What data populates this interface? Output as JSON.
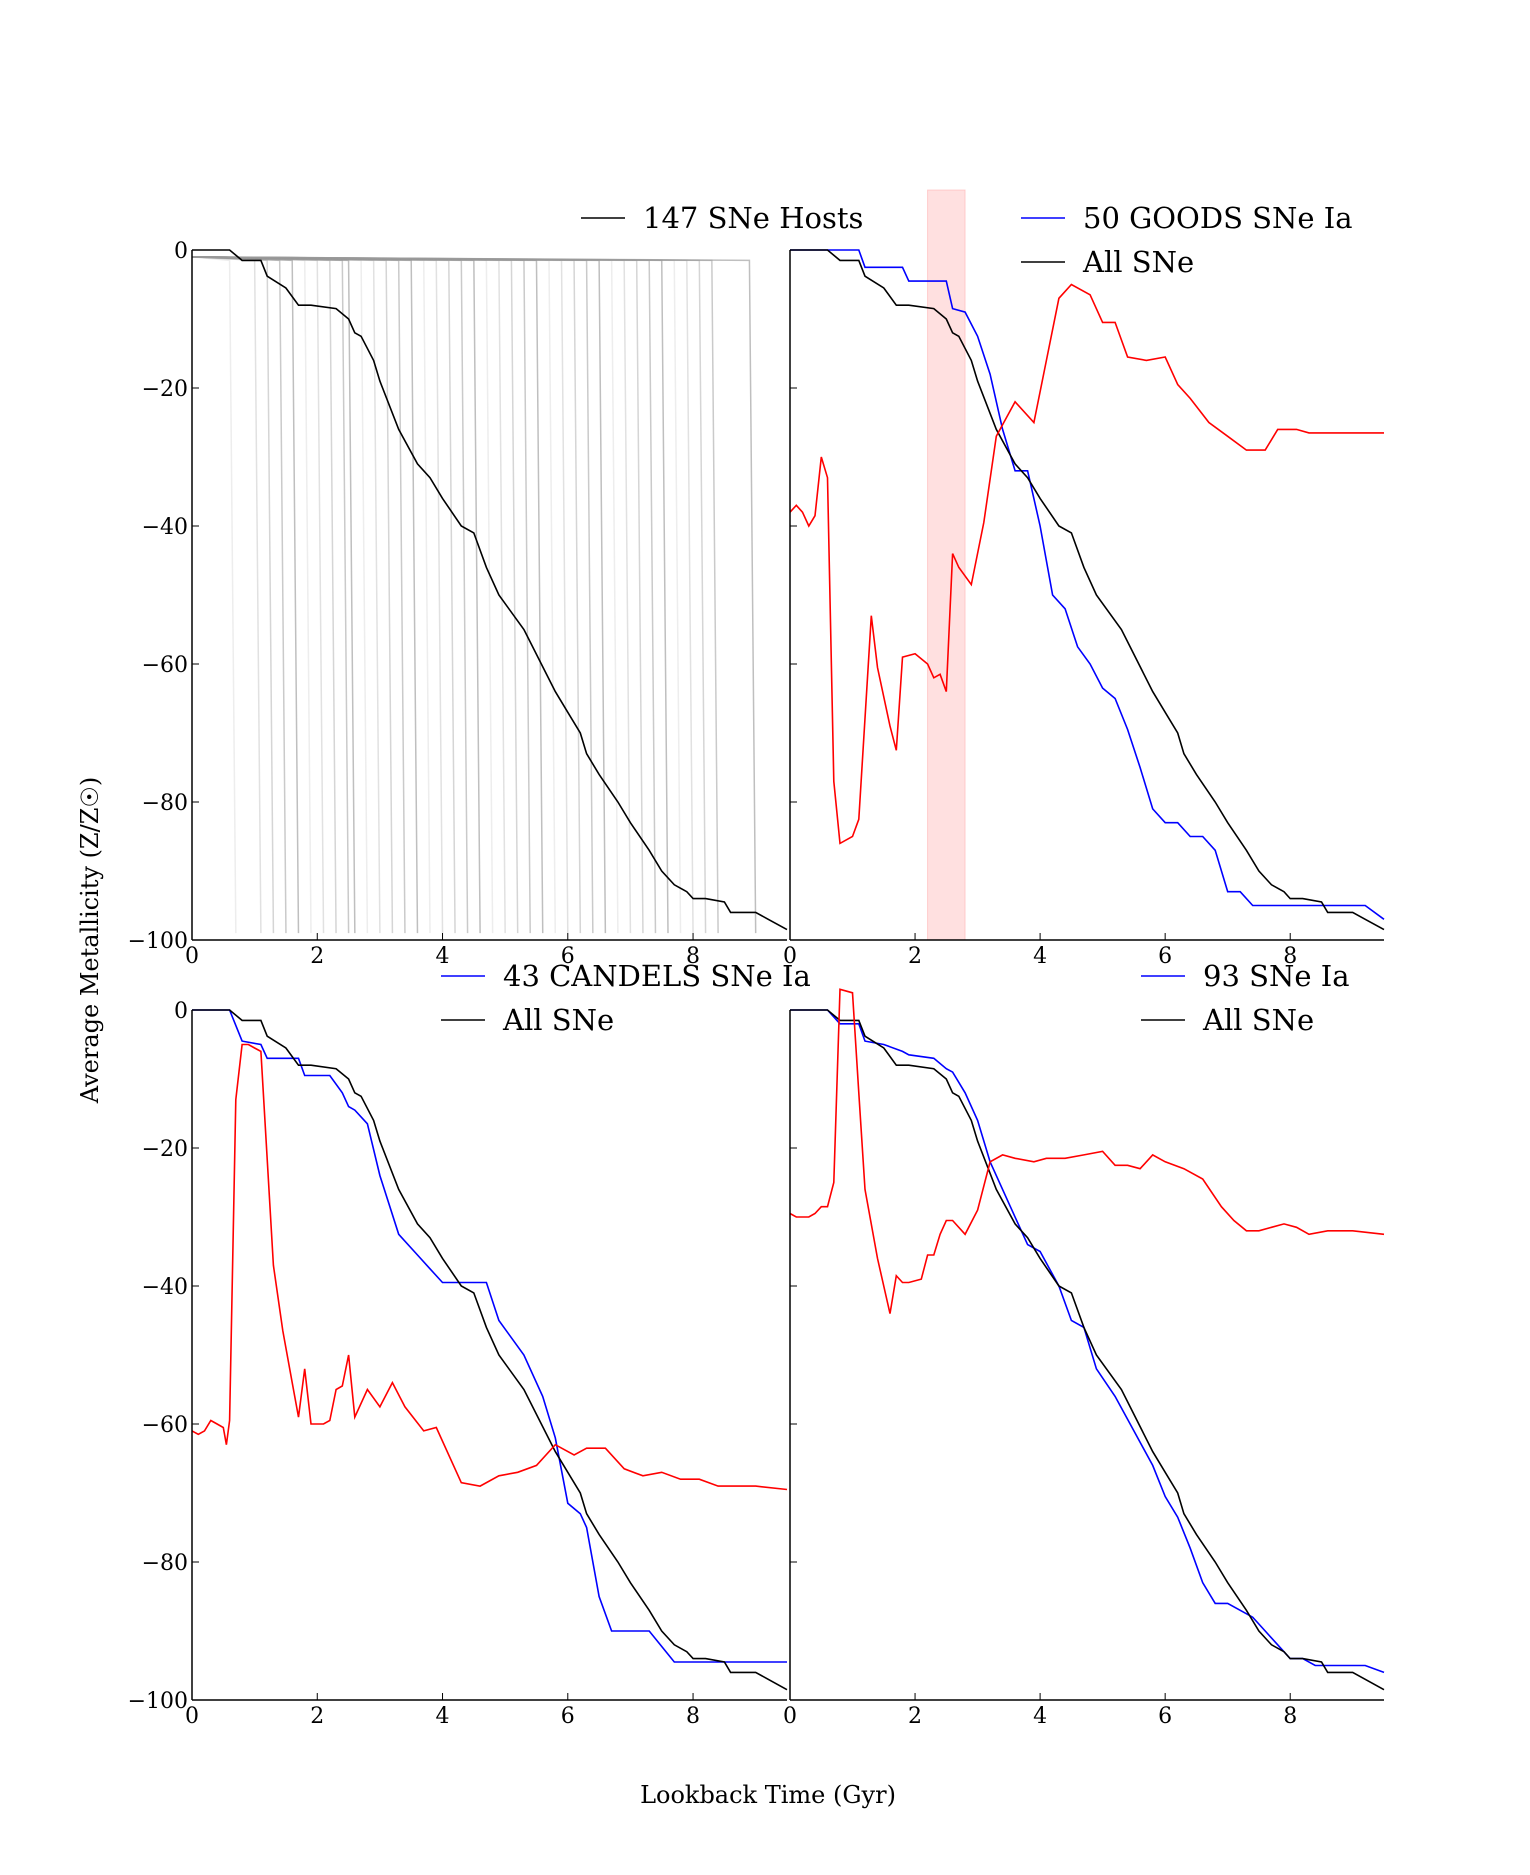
{
  "figure": {
    "xlabel": "Lookback Time (Gyr)",
    "ylabel": "Average Metallicity (Z/Z☉)"
  },
  "chart_data": [
    {
      "type": "line",
      "id": "hosts",
      "xlim": [
        0,
        9.5
      ],
      "ylim": [
        -100,
        0
      ],
      "xticks": [
        0,
        2,
        4,
        6,
        8
      ],
      "yticks": [
        0,
        -20,
        -40,
        -60,
        -80,
        -100
      ],
      "legend": [
        {
          "label": "147 SNe Hosts",
          "color": "#000000"
        }
      ],
      "background_tracks": {
        "color": "#999999",
        "floor": -99,
        "drop_times": [
          0.7,
          1.1,
          1.3,
          1.5,
          1.7,
          1.9,
          2.1,
          2.3,
          2.5,
          2.6,
          2.8,
          3.0,
          3.2,
          3.4,
          3.6,
          3.8,
          4.0,
          4.2,
          4.4,
          4.6,
          4.8,
          5.0,
          5.2,
          5.4,
          5.6,
          5.8,
          6.0,
          6.2,
          6.4,
          6.6,
          6.8,
          7.0,
          7.2,
          7.4,
          7.6,
          7.8,
          8.0,
          8.2,
          8.4,
          9.0
        ]
      },
      "series": [
        {
          "name": "147 SNe Hosts",
          "color": "#000000",
          "x": [
            0,
            0.1,
            0.6,
            0.8,
            1.1,
            1.2,
            1.5,
            1.7,
            1.9,
            2.3,
            2.5,
            2.6,
            2.7,
            2.9,
            3.0,
            3.3,
            3.6,
            3.8,
            4.0,
            4.3,
            4.5,
            4.7,
            4.9,
            5.3,
            5.8,
            6.0,
            6.2,
            6.3,
            6.5,
            6.8,
            7.0,
            7.3,
            7.5,
            7.7,
            7.9,
            8.0,
            8.2,
            8.5,
            8.6,
            9.0,
            9.2,
            9.5
          ],
          "y": [
            0,
            0,
            0,
            -1.5,
            -1.5,
            -3.8,
            -5.5,
            -8,
            -8,
            -8.5,
            -10,
            -12,
            -12.5,
            -16,
            -19,
            -26,
            -31,
            -33,
            -36,
            -40,
            -41,
            -46,
            -50,
            -55,
            -64,
            -67,
            -70,
            -73,
            -76,
            -80,
            -83,
            -87,
            -90,
            -92,
            -93,
            -94,
            -94,
            -94.5,
            -96,
            -96,
            -97,
            -98.5
          ]
        }
      ]
    },
    {
      "type": "line",
      "id": "goods",
      "xlim": [
        0,
        9.5
      ],
      "ylim": [
        -100,
        0
      ],
      "xticks": [
        0,
        2,
        4,
        6,
        8
      ],
      "yticks": [
        0,
        -20,
        -40,
        -60,
        -80,
        -100
      ],
      "highlight_band": {
        "x0": 2.2,
        "x1": 2.8,
        "color": "#ff9999"
      },
      "legend": [
        {
          "label": "50 GOODS SNe Ia",
          "color": "#0000ff"
        },
        {
          "label": "All SNe",
          "color": "#000000"
        }
      ],
      "series": [
        {
          "name": "50 GOODS SNe Ia",
          "color": "#0000ff",
          "x": [
            0,
            0.1,
            1.1,
            1.2,
            1.8,
            1.9,
            2.5,
            2.6,
            2.8,
            3.0,
            3.2,
            3.4,
            3.6,
            3.8,
            4.0,
            4.2,
            4.4,
            4.6,
            4.8,
            5.0,
            5.2,
            5.4,
            5.6,
            5.8,
            6.0,
            6.2,
            6.4,
            6.6,
            6.8,
            7.0,
            7.2,
            7.4,
            7.6,
            7.8,
            8.0,
            8.2,
            8.4,
            8.6,
            8.8,
            9.0,
            9.2,
            9.5
          ],
          "y": [
            0,
            0,
            0,
            -2.5,
            -2.5,
            -4.5,
            -4.5,
            -8.5,
            -9,
            -12.5,
            -18,
            -26,
            -32,
            -32,
            -40,
            -50,
            -52,
            -57.5,
            -60,
            -63.5,
            -65,
            -69.5,
            -75,
            -81,
            -83,
            -83,
            -85,
            -85,
            -87,
            -93,
            -93,
            -95,
            -95,
            -95,
            -95,
            -95,
            -95,
            -95,
            -95,
            -95,
            -95,
            -97
          ]
        },
        {
          "name": "All SNe",
          "color": "#000000",
          "x": [
            0,
            0.1,
            0.6,
            0.8,
            1.1,
            1.2,
            1.5,
            1.7,
            1.9,
            2.3,
            2.5,
            2.6,
            2.7,
            2.9,
            3.0,
            3.3,
            3.6,
            3.8,
            4.0,
            4.3,
            4.5,
            4.7,
            4.9,
            5.3,
            5.8,
            6.0,
            6.2,
            6.3,
            6.5,
            6.8,
            7.0,
            7.3,
            7.5,
            7.7,
            7.9,
            8.0,
            8.2,
            8.5,
            8.6,
            9.0,
            9.2,
            9.5
          ],
          "y": [
            0,
            0,
            0,
            -1.5,
            -1.5,
            -3.8,
            -5.5,
            -8,
            -8,
            -8.5,
            -10,
            -12,
            -12.5,
            -16,
            -19,
            -26,
            -31,
            -33,
            -36,
            -40,
            -41,
            -46,
            -50,
            -55,
            -64,
            -67,
            -70,
            -73,
            -76,
            -80,
            -83,
            -87,
            -90,
            -92,
            -93,
            -94,
            -94,
            -94.5,
            -96,
            -96,
            -97,
            -98.5
          ]
        },
        {
          "name": "",
          "color": "#ff0000",
          "x": [
            0,
            0.1,
            0.2,
            0.3,
            0.4,
            0.5,
            0.6,
            0.7,
            0.8,
            1.0,
            1.1,
            1.3,
            1.4,
            1.6,
            1.7,
            1.8,
            2.0,
            2.2,
            2.3,
            2.4,
            2.5,
            2.6,
            2.7,
            2.9,
            3.1,
            3.3,
            3.6,
            3.9,
            4.1,
            4.3,
            4.5,
            4.8,
            5.0,
            5.2,
            5.4,
            5.7,
            6.0,
            6.2,
            6.4,
            6.7,
            7.0,
            7.3,
            7.6,
            7.8,
            8.1,
            8.3,
            8.6,
            9.0,
            9.5
          ],
          "y": [
            -38,
            -37,
            -38,
            -40,
            -38.5,
            -30,
            -33,
            -77,
            -86,
            -85,
            -82.5,
            -53,
            -60.5,
            -69,
            -72.5,
            -59,
            -58.5,
            -60,
            -62,
            -61.5,
            -64,
            -44,
            -46,
            -48.5,
            -39.5,
            -27,
            -22,
            -25,
            -16,
            -7,
            -5,
            -6.5,
            -10.5,
            -10.5,
            -15.5,
            -16,
            -15.5,
            -19.5,
            -21.5,
            -25,
            -27,
            -29,
            -29,
            -26,
            -26,
            -26.5,
            -26.5,
            -26.5,
            -26.5
          ]
        }
      ]
    },
    {
      "type": "line",
      "id": "candels",
      "xlim": [
        0,
        9.5
      ],
      "ylim": [
        -100,
        0
      ],
      "xticks": [
        0,
        2,
        4,
        6,
        8
      ],
      "yticks": [
        0,
        -20,
        -40,
        -60,
        -80,
        -100
      ],
      "legend": [
        {
          "label": "43 CANDELS SNe Ia",
          "color": "#0000ff"
        },
        {
          "label": "All SNe",
          "color": "#000000"
        }
      ],
      "series": [
        {
          "name": "43 CANDELS SNe Ia",
          "color": "#0000ff",
          "x": [
            0,
            0.1,
            0.6,
            0.8,
            1.1,
            1.2,
            1.7,
            1.8,
            2.2,
            2.4,
            2.5,
            2.6,
            2.8,
            3.0,
            3.3,
            3.6,
            3.8,
            4.0,
            4.3,
            4.5,
            4.7,
            4.9,
            5.3,
            5.6,
            5.8,
            6.0,
            6.2,
            6.3,
            6.5,
            6.7,
            7.0,
            7.3,
            7.7,
            8.0,
            8.3,
            8.7,
            9.0,
            9.5
          ],
          "y": [
            0,
            0,
            0,
            -4.5,
            -5,
            -7,
            -7,
            -9.5,
            -9.5,
            -12,
            -14,
            -14.5,
            -16.5,
            -24,
            -32.5,
            -35.5,
            -37.5,
            -39.5,
            -39.5,
            -39.5,
            -39.5,
            -45,
            -50,
            -56,
            -62,
            -71.5,
            -73,
            -75,
            -85,
            -90,
            -90,
            -90,
            -94.5,
            -94.5,
            -94.5,
            -94.5,
            -94.5,
            -94.5
          ]
        },
        {
          "name": "All SNe",
          "color": "#000000",
          "x": [
            0,
            0.1,
            0.6,
            0.8,
            1.1,
            1.2,
            1.5,
            1.7,
            1.9,
            2.3,
            2.5,
            2.6,
            2.7,
            2.9,
            3.0,
            3.3,
            3.6,
            3.8,
            4.0,
            4.3,
            4.5,
            4.7,
            4.9,
            5.3,
            5.8,
            6.0,
            6.2,
            6.3,
            6.5,
            6.8,
            7.0,
            7.3,
            7.5,
            7.7,
            7.9,
            8.0,
            8.2,
            8.5,
            8.6,
            9.0,
            9.2,
            9.5
          ],
          "y": [
            0,
            0,
            0,
            -1.5,
            -1.5,
            -3.8,
            -5.5,
            -8,
            -8,
            -8.5,
            -10,
            -12,
            -12.5,
            -16,
            -19,
            -26,
            -31,
            -33,
            -36,
            -40,
            -41,
            -46,
            -50,
            -55,
            -64,
            -67,
            -70,
            -73,
            -76,
            -80,
            -83,
            -87,
            -90,
            -92,
            -93,
            -94,
            -94,
            -94.5,
            -96,
            -96,
            -97,
            -98.5
          ]
        },
        {
          "name": "",
          "color": "#ff0000",
          "x": [
            0,
            0.1,
            0.2,
            0.3,
            0.4,
            0.5,
            0.55,
            0.6,
            0.7,
            0.8,
            0.9,
            1.0,
            1.1,
            1.3,
            1.45,
            1.6,
            1.7,
            1.8,
            1.9,
            2.1,
            2.2,
            2.3,
            2.4,
            2.5,
            2.6,
            2.8,
            3.0,
            3.2,
            3.4,
            3.7,
            3.9,
            4.3,
            4.6,
            4.9,
            5.2,
            5.5,
            5.8,
            6.1,
            6.3,
            6.6,
            6.9,
            7.2,
            7.5,
            7.8,
            8.1,
            8.4,
            8.7,
            9.0,
            9.5
          ],
          "y": [
            -61,
            -61.5,
            -61,
            -59.5,
            -60,
            -60.5,
            -63,
            -59.5,
            -13,
            -5,
            -5,
            -5.5,
            -6,
            -37,
            -46.5,
            -54,
            -59,
            -52,
            -60,
            -60,
            -59.5,
            -55,
            -54.5,
            -50,
            -59,
            -55,
            -57.5,
            -54,
            -57.5,
            -61,
            -60.5,
            -68.5,
            -69,
            -67.5,
            -67,
            -66,
            -63,
            -64.5,
            -63.5,
            -63.5,
            -66.5,
            -67.5,
            -67,
            -68,
            -68,
            -69,
            -69,
            -69,
            -69.5
          ]
        }
      ]
    },
    {
      "type": "line",
      "id": "all93",
      "xlim": [
        0,
        9.5
      ],
      "ylim": [
        -100,
        0
      ],
      "xticks": [
        0,
        2,
        4,
        6,
        8
      ],
      "yticks": [
        0,
        -20,
        -40,
        -60,
        -80,
        -100
      ],
      "legend": [
        {
          "label": "93 SNe Ia",
          "color": "#0000ff"
        },
        {
          "label": "All SNe",
          "color": "#000000"
        }
      ],
      "series": [
        {
          "name": "93 SNe Ia",
          "color": "#0000ff",
          "x": [
            0,
            0.1,
            0.6,
            0.8,
            1.1,
            1.2,
            1.5,
            1.8,
            1.9,
            2.3,
            2.5,
            2.6,
            2.8,
            3.0,
            3.2,
            3.5,
            3.8,
            4.0,
            4.3,
            4.5,
            4.7,
            4.9,
            5.2,
            5.5,
            5.8,
            6.0,
            6.2,
            6.4,
            6.6,
            6.8,
            7.0,
            7.2,
            7.4,
            7.6,
            7.8,
            8.0,
            8.2,
            8.4,
            8.6,
            9.0,
            9.2,
            9.5
          ],
          "y": [
            0,
            0,
            0,
            -2,
            -2,
            -4.5,
            -5,
            -6,
            -6.5,
            -7,
            -8.5,
            -9,
            -12,
            -16,
            -22,
            -28,
            -34,
            -35,
            -40,
            -45,
            -46,
            -52,
            -56,
            -61,
            -66,
            -70.5,
            -73.5,
            -78,
            -83,
            -86,
            -86,
            -87,
            -88,
            -90,
            -92,
            -94,
            -94,
            -95,
            -95,
            -95,
            -95,
            -96
          ]
        },
        {
          "name": "All SNe",
          "color": "#000000",
          "x": [
            0,
            0.1,
            0.6,
            0.8,
            1.1,
            1.2,
            1.5,
            1.7,
            1.9,
            2.3,
            2.5,
            2.6,
            2.7,
            2.9,
            3.0,
            3.3,
            3.6,
            3.8,
            4.0,
            4.3,
            4.5,
            4.7,
            4.9,
            5.3,
            5.8,
            6.0,
            6.2,
            6.3,
            6.5,
            6.8,
            7.0,
            7.3,
            7.5,
            7.7,
            7.9,
            8.0,
            8.2,
            8.5,
            8.6,
            9.0,
            9.2,
            9.5
          ],
          "y": [
            0,
            0,
            0,
            -1.5,
            -1.5,
            -3.8,
            -5.5,
            -8,
            -8,
            -8.5,
            -10,
            -12,
            -12.5,
            -16,
            -19,
            -26,
            -31,
            -33,
            -36,
            -40,
            -41,
            -46,
            -50,
            -55,
            -64,
            -67,
            -70,
            -73,
            -76,
            -80,
            -83,
            -87,
            -90,
            -92,
            -93,
            -94,
            -94,
            -94.5,
            -96,
            -96,
            -97,
            -98.5
          ]
        },
        {
          "name": "",
          "color": "#ff0000",
          "x": [
            0,
            0.1,
            0.3,
            0.4,
            0.5,
            0.6,
            0.7,
            0.8,
            1.0,
            1.1,
            1.2,
            1.4,
            1.6,
            1.7,
            1.8,
            1.9,
            2.1,
            2.2,
            2.3,
            2.4,
            2.5,
            2.6,
            2.8,
            3.0,
            3.2,
            3.4,
            3.6,
            3.9,
            4.1,
            4.4,
            4.7,
            5.0,
            5.2,
            5.4,
            5.6,
            5.8,
            6.0,
            6.3,
            6.6,
            6.9,
            7.1,
            7.3,
            7.5,
            7.7,
            7.9,
            8.1,
            8.3,
            8.6,
            9.0,
            9.5
          ],
          "y": [
            -29.5,
            -30,
            -30,
            -29.5,
            -28.5,
            -28.5,
            -25,
            3,
            2.5,
            -12,
            -26,
            -36,
            -44,
            -38.5,
            -39.5,
            -39.5,
            -39,
            -35.5,
            -35.5,
            -32.5,
            -30.5,
            -30.5,
            -32.5,
            -29,
            -22,
            -21,
            -21.5,
            -22,
            -21.5,
            -21.5,
            -21,
            -20.5,
            -22.5,
            -22.5,
            -23,
            -21,
            -22,
            -23,
            -24.5,
            -28.5,
            -30.5,
            -32,
            -32,
            -31.5,
            -31,
            -31.5,
            -32.5,
            -32,
            -32,
            -32.5
          ]
        }
      ]
    }
  ]
}
